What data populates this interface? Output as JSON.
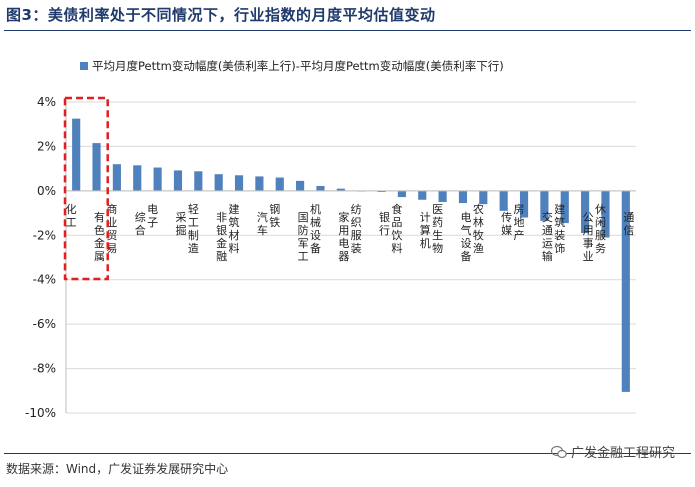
{
  "figure": {
    "title": "图3：美债利率处于不同情况下，行业指数的月度平均估值变动",
    "source": "数据来源：Wind，广发证券发展研究中心",
    "watermark": "广发金融工程研究",
    "watermark_icon": "wechat-icon"
  },
  "colors": {
    "bar": "#4f81bd",
    "highlight_box": "#e02020",
    "grid": "#d9d9d9",
    "title": "#1f3a6b"
  },
  "chart_data": {
    "type": "bar",
    "legend_position": "top-left",
    "grid": "horizontal",
    "ylim": [
      -10,
      4
    ],
    "yticks": [
      4,
      2,
      0,
      -2,
      -4,
      -6,
      -8,
      -10
    ],
    "ytick_labels": [
      "4%",
      "2%",
      "0%",
      "-2%",
      "-4%",
      "-6%",
      "-8%",
      "-10%"
    ],
    "categories": [
      "化工",
      "有色金属",
      "商业贸易",
      "综合",
      "电子",
      "采掘",
      "轻工制造",
      "非银金融",
      "建筑材料",
      "汽车",
      "钢铁",
      "国防军工",
      "机械设备",
      "家用电器",
      "纺织服装",
      "银行",
      "食品饮料",
      "计算机",
      "医药生物",
      "电气设备",
      "农林牧渔",
      "传媒",
      "房地产",
      "交通运输",
      "建筑装饰",
      "公用事业",
      "休闲服务",
      "通信"
    ],
    "series": [
      {
        "name": "平均月度Pettm变动幅度(美债利率上行)-平均月度Pettm变动幅度(美债利率下行)",
        "values": [
          3.25,
          2.15,
          1.2,
          1.15,
          1.05,
          0.92,
          0.88,
          0.75,
          0.7,
          0.65,
          0.6,
          0.45,
          0.22,
          0.1,
          -0.03,
          -0.05,
          -0.28,
          -0.4,
          -0.5,
          -0.55,
          -0.6,
          -0.9,
          -1.2,
          -1.35,
          -1.45,
          -1.9,
          -2.1,
          -9.05
        ]
      }
    ],
    "highlight_categories": [
      "化工",
      "有色金属"
    ]
  }
}
